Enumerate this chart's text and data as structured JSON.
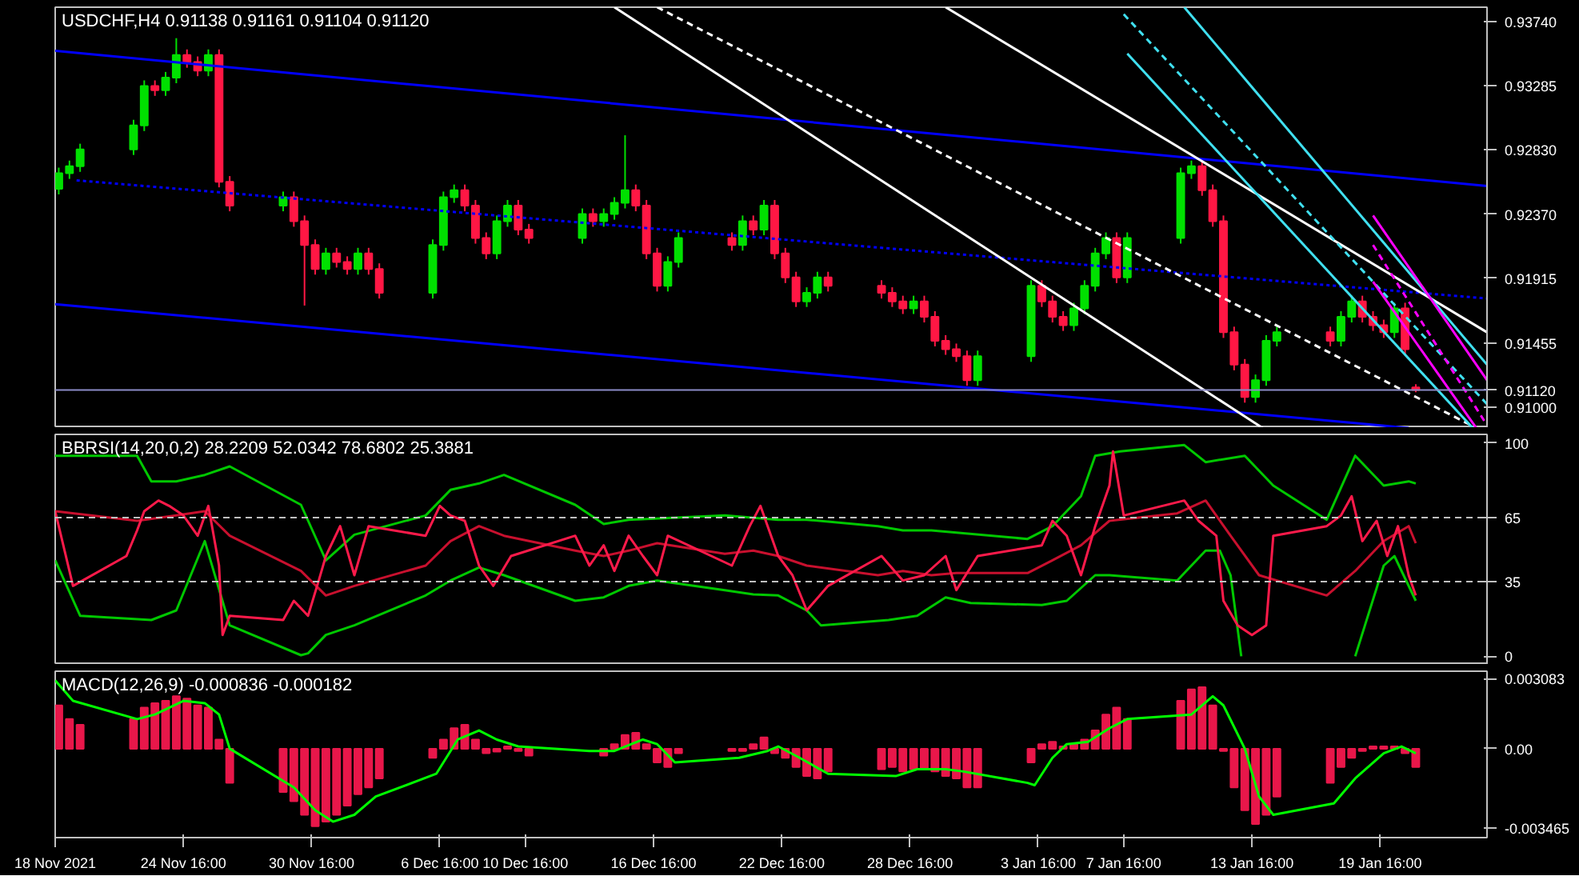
{
  "chart_data": [
    {
      "type": "candlestick",
      "title": "USDCHF,H4  0.91138 0.91161 0.91104 0.91120",
      "tick_labels": "y",
      "grid": false,
      "xlim": [
        "2021-11-18T16:00",
        "2022-01-24T16:00"
      ],
      "ylim": [
        0.9085,
        0.9384
      ],
      "yticks": [
        {
          "value": 0.91,
          "label": "0.91000"
        },
        {
          "value": 0.91455,
          "label": "0.91455"
        },
        {
          "value": 0.91915,
          "label": "0.91915"
        },
        {
          "value": 0.9237,
          "label": "0.92370"
        },
        {
          "value": 0.9283,
          "label": "0.92830"
        },
        {
          "value": 0.93285,
          "label": "0.93285"
        },
        {
          "value": 0.9374,
          "label": "0.93740"
        }
      ],
      "x": [
        "2021-11-18T20:00",
        "2021-11-19T08:00",
        "2021-11-19T20:00",
        "2021-11-22T08:00",
        "2021-11-22T20:00",
        "2021-11-23T08:00",
        "2021-11-23T20:00",
        "2021-11-24T08:00",
        "2021-11-24T20:00",
        "2021-11-25T08:00",
        "2021-11-25T20:00",
        "2021-11-26T08:00",
        "2021-11-26T20:00",
        "2021-11-29T08:00",
        "2021-11-29T20:00",
        "2021-11-30T08:00",
        "2021-11-30T20:00",
        "2021-12-01T08:00",
        "2021-12-01T20:00",
        "2021-12-02T08:00",
        "2021-12-02T20:00",
        "2021-12-03T08:00",
        "2021-12-03T20:00",
        "2021-12-06T08:00",
        "2021-12-06T20:00",
        "2021-12-07T08:00",
        "2021-12-07T20:00",
        "2021-12-08T08:00",
        "2021-12-08T20:00",
        "2021-12-09T08:00",
        "2021-12-09T20:00",
        "2021-12-10T08:00",
        "2021-12-10T20:00",
        "2021-12-13T08:00",
        "2021-12-13T20:00",
        "2021-12-14T08:00",
        "2021-12-14T20:00",
        "2021-12-15T08:00",
        "2021-12-15T20:00",
        "2021-12-16T08:00",
        "2021-12-16T20:00",
        "2021-12-17T08:00",
        "2021-12-17T20:00",
        "2021-12-20T08:00",
        "2021-12-20T20:00",
        "2021-12-21T08:00",
        "2021-12-21T20:00",
        "2021-12-22T08:00",
        "2021-12-22T20:00",
        "2021-12-23T08:00",
        "2021-12-23T20:00",
        "2021-12-24T08:00",
        "2021-12-24T20:00",
        "2021-12-27T08:00",
        "2021-12-27T20:00",
        "2021-12-28T08:00",
        "2021-12-28T20:00",
        "2021-12-29T08:00",
        "2021-12-29T20:00",
        "2021-12-30T08:00",
        "2021-12-30T20:00",
        "2021-12-31T08:00",
        "2021-12-31T20:00",
        "2022-01-03T08:00",
        "2022-01-03T20:00",
        "2022-01-04T08:00",
        "2022-01-04T20:00",
        "2022-01-05T08:00",
        "2022-01-05T20:00",
        "2022-01-06T08:00",
        "2022-01-06T20:00",
        "2022-01-07T08:00",
        "2022-01-07T20:00",
        "2022-01-10T08:00",
        "2022-01-10T20:00",
        "2022-01-11T08:00",
        "2022-01-11T20:00",
        "2022-01-12T08:00",
        "2022-01-12T20:00",
        "2022-01-13T08:00",
        "2022-01-13T20:00",
        "2022-01-14T08:00",
        "2022-01-14T20:00",
        "2022-01-17T08:00",
        "2022-01-17T20:00",
        "2022-01-18T08:00",
        "2022-01-18T20:00",
        "2022-01-19T08:00",
        "2022-01-19T20:00",
        "2022-01-20T08:00",
        "2022-01-20T20:00",
        "2022-01-21T08:00"
      ],
      "ohlc": [
        [
          0.9255,
          0.927,
          0.9251,
          0.9266
        ],
        [
          0.9266,
          0.9275,
          0.9262,
          0.9271
        ],
        [
          0.9271,
          0.9287,
          0.9267,
          0.9283
        ],
        [
          0.9283,
          0.9304,
          0.9279,
          0.93
        ],
        [
          0.93,
          0.9332,
          0.9296,
          0.9328
        ],
        [
          0.9328,
          0.9332,
          0.9321,
          0.9325
        ],
        [
          0.9325,
          0.9338,
          0.9321,
          0.9334
        ],
        [
          0.9334,
          0.9362,
          0.933,
          0.935
        ],
        [
          0.935,
          0.9354,
          0.9341,
          0.9345
        ],
        [
          0.9345,
          0.9349,
          0.9335,
          0.9339
        ],
        [
          0.9339,
          0.9354,
          0.9335,
          0.935
        ],
        [
          0.935,
          0.9354,
          0.9256,
          0.926
        ],
        [
          0.926,
          0.9264,
          0.9239,
          0.9243
        ],
        [
          0.9243,
          0.9253,
          0.9239,
          0.9249
        ],
        [
          0.9249,
          0.9253,
          0.9228,
          0.9232
        ],
        [
          0.9232,
          0.9236,
          0.9172,
          0.9215
        ],
        [
          0.9215,
          0.9219,
          0.9194,
          0.9198
        ],
        [
          0.9198,
          0.9213,
          0.9194,
          0.9209
        ],
        [
          0.9209,
          0.9213,
          0.9199,
          0.9203
        ],
        [
          0.9203,
          0.9207,
          0.9194,
          0.9198
        ],
        [
          0.9198,
          0.9213,
          0.9194,
          0.9209
        ],
        [
          0.9209,
          0.9213,
          0.9194,
          0.9198
        ],
        [
          0.9198,
          0.9202,
          0.9177,
          0.9181
        ],
        [
          0.9181,
          0.9219,
          0.9177,
          0.9215
        ],
        [
          0.9215,
          0.9253,
          0.9211,
          0.9249
        ],
        [
          0.9249,
          0.9258,
          0.9245,
          0.9254
        ],
        [
          0.9254,
          0.9258,
          0.9239,
          0.9243
        ],
        [
          0.9243,
          0.9247,
          0.9216,
          0.922
        ],
        [
          0.922,
          0.9224,
          0.9205,
          0.9209
        ],
        [
          0.9209,
          0.9236,
          0.9205,
          0.9232
        ],
        [
          0.9232,
          0.9247,
          0.9228,
          0.9243
        ],
        [
          0.9243,
          0.9247,
          0.9222,
          0.9226
        ],
        [
          0.9226,
          0.923,
          0.9216,
          0.922
        ],
        [
          0.922,
          0.9241,
          0.9216,
          0.9237
        ],
        [
          0.9237,
          0.9241,
          0.9228,
          0.9232
        ],
        [
          0.9232,
          0.9241,
          0.9228,
          0.9237
        ],
        [
          0.9237,
          0.9249,
          0.9233,
          0.9245
        ],
        [
          0.9245,
          0.9293,
          0.9241,
          0.9254
        ],
        [
          0.9254,
          0.9258,
          0.9239,
          0.9243
        ],
        [
          0.9243,
          0.9247,
          0.9205,
          0.9209
        ],
        [
          0.9209,
          0.9213,
          0.9182,
          0.9186
        ],
        [
          0.9186,
          0.9207,
          0.9182,
          0.9203
        ],
        [
          0.9203,
          0.9224,
          0.9199,
          0.922
        ],
        [
          0.922,
          0.9224,
          0.9211,
          0.9215
        ],
        [
          0.9215,
          0.9236,
          0.9211,
          0.9232
        ],
        [
          0.9232,
          0.9236,
          0.9222,
          0.9226
        ],
        [
          0.9226,
          0.9247,
          0.9222,
          0.9243
        ],
        [
          0.9243,
          0.9247,
          0.9205,
          0.9209
        ],
        [
          0.9209,
          0.9213,
          0.9188,
          0.9192
        ],
        [
          0.9192,
          0.9196,
          0.9171,
          0.9175
        ],
        [
          0.9175,
          0.9185,
          0.9171,
          0.9181
        ],
        [
          0.9181,
          0.9196,
          0.9177,
          0.9192
        ],
        [
          0.9192,
          0.9196,
          0.9182,
          0.9186
        ],
        [
          0.9186,
          0.919,
          0.9177,
          0.9181
        ],
        [
          0.9181,
          0.9185,
          0.9171,
          0.9175
        ],
        [
          0.9175,
          0.9179,
          0.9166,
          0.917
        ],
        [
          0.917,
          0.9179,
          0.9166,
          0.9175
        ],
        [
          0.9175,
          0.9179,
          0.916,
          0.9164
        ],
        [
          0.9164,
          0.9168,
          0.9143,
          0.9147
        ],
        [
          0.9147,
          0.9151,
          0.9137,
          0.9141
        ],
        [
          0.9141,
          0.9145,
          0.9132,
          0.9136
        ],
        [
          0.9136,
          0.914,
          0.9115,
          0.9119
        ],
        [
          0.9119,
          0.914,
          0.9115,
          0.9136
        ],
        [
          0.9136,
          0.919,
          0.9132,
          0.9186
        ],
        [
          0.9186,
          0.919,
          0.9171,
          0.9175
        ],
        [
          0.9175,
          0.9179,
          0.916,
          0.9164
        ],
        [
          0.9164,
          0.9168,
          0.9154,
          0.9158
        ],
        [
          0.9158,
          0.9174,
          0.9154,
          0.917
        ],
        [
          0.917,
          0.919,
          0.9166,
          0.9186
        ],
        [
          0.9186,
          0.9213,
          0.9182,
          0.9209
        ],
        [
          0.9209,
          0.9224,
          0.9205,
          0.922
        ],
        [
          0.922,
          0.9224,
          0.9188,
          0.9192
        ],
        [
          0.9192,
          0.9224,
          0.9188,
          0.922
        ],
        [
          0.922,
          0.927,
          0.9216,
          0.9266
        ],
        [
          0.9266,
          0.9275,
          0.9262,
          0.9271
        ],
        [
          0.9271,
          0.9275,
          0.925,
          0.9254
        ],
        [
          0.9254,
          0.9258,
          0.9228,
          0.9232
        ],
        [
          0.9232,
          0.9236,
          0.9149,
          0.9153
        ],
        [
          0.9153,
          0.9157,
          0.9126,
          0.913
        ],
        [
          0.913,
          0.9134,
          0.9103,
          0.9107
        ],
        [
          0.9107,
          0.9123,
          0.9103,
          0.9119
        ],
        [
          0.9119,
          0.9151,
          0.9115,
          0.9147
        ],
        [
          0.9147,
          0.9157,
          0.9143,
          0.9153
        ],
        [
          0.9153,
          0.9157,
          0.9143,
          0.9147
        ],
        [
          0.9147,
          0.9168,
          0.9143,
          0.9164
        ],
        [
          0.9164,
          0.9179,
          0.916,
          0.9175
        ],
        [
          0.9175,
          0.9179,
          0.916,
          0.9164
        ],
        [
          0.9164,
          0.9168,
          0.9154,
          0.9158
        ],
        [
          0.9158,
          0.9162,
          0.9149,
          0.9153
        ],
        [
          0.9153,
          0.9174,
          0.9149,
          0.917
        ],
        [
          0.917,
          0.9174,
          0.9137,
          0.9141
        ],
        [
          0.91138,
          0.91161,
          0.91104,
          0.9112
        ]
      ],
      "series": [
        {
          "type": "line",
          "color": "#0000ff",
          "line_style": "solid",
          "x": [
            "2021-11-18T16:00",
            "2022-01-24T16:00"
          ],
          "values": [
            0.9353,
            0.9257
          ]
        },
        {
          "type": "line",
          "color": "#0000ff",
          "line_style": "dotted",
          "x": [
            "2021-11-19T16:00",
            "2022-01-24T16:00"
          ],
          "values": [
            0.9261,
            0.9177
          ]
        },
        {
          "type": "line",
          "color": "#0000ff",
          "line_style": "solid",
          "x": [
            "2021-11-18T16:00",
            "2022-01-21T00:00"
          ],
          "values": [
            0.9173,
            0.9085
          ]
        },
        {
          "type": "line",
          "color": "#ffffff",
          "line_style": "solid",
          "x": [
            "2021-12-14T20:00",
            "2022-01-14T04:00"
          ],
          "values": [
            0.9384,
            0.9085
          ]
        },
        {
          "type": "line",
          "color": "#ffffff",
          "line_style": "dashed",
          "x": [
            "2021-12-16T20:00",
            "2022-01-24T04:00"
          ],
          "values": [
            0.9384,
            0.9085
          ]
        },
        {
          "type": "line",
          "color": "#ffffff",
          "line_style": "solid",
          "x": [
            "2021-12-30T08:00",
            "2022-01-24T16:00"
          ],
          "values": [
            0.9384,
            0.9153
          ]
        },
        {
          "type": "line",
          "color": "#40e0f0",
          "line_style": "solid",
          "x": [
            "2022-01-10T12:00",
            "2022-01-24T16:00"
          ],
          "values": [
            0.9384,
            0.913
          ]
        },
        {
          "type": "line",
          "color": "#40e0f0",
          "line_style": "dashed",
          "x": [
            "2022-01-07T16:00",
            "2022-01-24T16:00"
          ],
          "values": [
            0.9379,
            0.9102
          ]
        },
        {
          "type": "line",
          "color": "#40e0f0",
          "line_style": "solid",
          "x": [
            "2022-01-07T20:00",
            "2022-01-24T00:00"
          ],
          "values": [
            0.9351,
            0.9085
          ]
        },
        {
          "type": "line",
          "color": "#ff00ff",
          "line_style": "solid",
          "x": [
            "2022-01-19T08:00",
            "2022-01-24T16:00"
          ],
          "values": [
            0.9236,
            0.9119
          ]
        },
        {
          "type": "line",
          "color": "#ff00ff",
          "line_style": "dashed",
          "x": [
            "2022-01-19T08:00",
            "2022-01-24T16:00"
          ],
          "values": [
            0.9215,
            0.9087
          ]
        },
        {
          "type": "line",
          "color": "#ff00ff",
          "line_style": "solid",
          "x": [
            "2022-01-19T08:00",
            "2022-01-24T04:00"
          ],
          "values": [
            0.9189,
            0.9085
          ]
        }
      ],
      "ref_lines": [
        {
          "axis": "y",
          "value": 0.9112,
          "label": "0.91120",
          "color": "#8c8cc8",
          "line_style": "solid"
        }
      ]
    },
    {
      "type": "line",
      "title": "BBRSI(14,20,0,2) 28.2209 52.0342 78.6802 25.3881",
      "tick_labels": "y",
      "grid": false,
      "xlim": [
        "2021-11-18T16:00",
        "2022-01-24T16:00"
      ],
      "ylim": [
        -4,
        104
      ],
      "yticks": [
        0,
        35,
        65,
        100
      ],
      "series": [
        {
          "color": "#00c800",
          "x": [
            "2021-11-18T16:00",
            "2021-11-22T12:00",
            "2021-11-23T04:00",
            "2021-11-24T08:00",
            "2021-11-25T16:00",
            "2021-11-26T20:00",
            "2021-11-30T04:00",
            "2021-12-01T08:00",
            "2021-12-02T16:00",
            "2021-12-06T00:00",
            "2021-12-07T04:00",
            "2021-12-08T12:00",
            "2021-12-09T16:00",
            "2021-12-13T00:00",
            "2021-12-14T08:00",
            "2021-12-15T12:00",
            "2021-12-20T00:00",
            "2021-12-22T12:00",
            "2021-12-23T20:00",
            "2021-12-27T04:00",
            "2021-12-28T08:00",
            "2021-12-29T16:00",
            "2022-01-03T04:00",
            "2022-01-04T08:00",
            "2022-01-05T16:00",
            "2022-01-06T08:00",
            "2022-01-07T12:00",
            "2022-01-10T12:00",
            "2022-01-11T12:00",
            "2022-01-13T08:00",
            "2022-01-14T16:00",
            "2022-01-17T04:00",
            "2022-01-18T12:00",
            "2022-01-19T20:00",
            "2022-01-21T00:00",
            "2022-01-21T08:00"
          ],
          "values": [
            94,
            94,
            82,
            82,
            85,
            89,
            71,
            45,
            57,
            66,
            78,
            81,
            85,
            71,
            62,
            64,
            66,
            64,
            64,
            61,
            59,
            59,
            55,
            61,
            75,
            94,
            96,
            99,
            91,
            94,
            80,
            64,
            94,
            80,
            82,
            81
          ]
        },
        {
          "color": "#00c800",
          "x": [
            "2021-11-18T16:00",
            "2021-11-19T20:00",
            "2021-11-23T04:00",
            "2021-11-24T08:00",
            "2021-11-25T16:00",
            "2021-11-26T20:00",
            "2021-11-30T04:00",
            "2021-11-30T12:00",
            "2021-12-01T08:00",
            "2021-12-02T16:00",
            "2021-12-06T00:00",
            "2021-12-07T04:00",
            "2021-12-08T12:00",
            "2021-12-09T16:00",
            "2021-12-13T00:00",
            "2021-12-14T08:00",
            "2021-12-15T12:00",
            "2021-12-16T20:00",
            "2021-12-20T00:00",
            "2021-12-21T08:00",
            "2021-12-22T12:00",
            "2021-12-23T20:00",
            "2021-12-24T12:00",
            "2021-12-27T16:00",
            "2021-12-29T00:00",
            "2021-12-30T08:00",
            "2021-12-31T12:00",
            "2022-01-03T20:00",
            "2022-01-05T00:00",
            "2022-01-06T08:00",
            "2022-01-07T00:00",
            "2022-01-10T04:00",
            "2022-01-11T12:00",
            "2022-01-12T04:00",
            "2022-01-12T16:00",
            "2022-01-13T04:00",
            "2022-01-14T00:00",
            "2022-01-17T20:00",
            "2022-01-18T12:00",
            "2022-01-19T20:00",
            "2022-01-20T08:00",
            "2022-01-21T08:00"
          ],
          "values": [
            45,
            19,
            17,
            21.5,
            54,
            14.5,
            0.5,
            1.4,
            10,
            14.5,
            28.5,
            35.5,
            41.6,
            38,
            26,
            27.6,
            33,
            35.5,
            31,
            29,
            28.5,
            21.5,
            14.5,
            17,
            19,
            27.6,
            25,
            24,
            26,
            38,
            38,
            35.5,
            49.5,
            49.5,
            38,
            0,
            null,
            null,
            0,
            42.5,
            47,
            26
          ]
        },
        {
          "color": "#c8102e",
          "x": [
            "2021-11-18T16:00",
            "2021-11-22T12:00",
            "2021-11-24T08:00",
            "2021-11-25T16:00",
            "2021-11-26T20:00",
            "2021-11-30T04:00",
            "2021-12-01T08:00",
            "2021-12-02T16:00",
            "2021-12-06T00:00",
            "2021-12-07T04:00",
            "2021-12-08T12:00",
            "2021-12-09T16:00",
            "2021-12-13T00:00",
            "2021-12-14T08:00",
            "2021-12-15T12:00",
            "2021-12-16T20:00",
            "2021-12-20T00:00",
            "2021-12-21T08:00",
            "2021-12-22T12:00",
            "2021-12-23T20:00",
            "2021-12-27T04:00",
            "2021-12-28T08:00",
            "2021-12-29T16:00",
            "2021-12-30T20:00",
            "2022-01-03T04:00",
            "2022-01-04T08:00",
            "2022-01-05T16:00",
            "2022-01-07T00:00",
            "2022-01-10T04:00",
            "2022-01-11T12:00",
            "2022-01-12T16:00",
            "2022-01-14T00:00",
            "2022-01-17T04:00",
            "2022-01-18T12:00",
            "2022-01-19T20:00",
            "2022-01-21T00:00",
            "2022-01-21T08:00"
          ],
          "values": [
            68,
            63.5,
            66,
            68,
            56.5,
            40,
            28.5,
            33,
            42.5,
            54,
            61,
            56.5,
            49.5,
            47,
            49.5,
            53,
            48,
            49.5,
            47,
            42.5,
            38,
            40,
            38,
            39,
            39,
            45,
            52,
            63.5,
            67,
            73,
            56.5,
            38,
            28.5,
            40,
            54,
            61,
            53
          ]
        },
        {
          "color": "#ff1a4a",
          "x": [
            "2021-11-18T16:00",
            "2021-11-19T12:00",
            "2021-11-22T00:00",
            "2021-11-22T12:00",
            "2021-11-22T20:00",
            "2021-11-23T12:00",
            "2021-11-24T00:00",
            "2021-11-24T16:00",
            "2021-11-25T08:00",
            "2021-11-25T20:00",
            "2021-11-26T08:00",
            "2021-11-26T12:00",
            "2021-11-26T20:00",
            "2021-11-29T08:00",
            "2021-11-29T20:00",
            "2021-11-30T12:00",
            "2021-12-01T00:00",
            "2021-12-01T08:00",
            "2021-12-02T00:00",
            "2021-12-02T16:00",
            "2021-12-03T08:00",
            "2021-12-06T00:00",
            "2021-12-06T16:00",
            "2021-12-07T04:00",
            "2021-12-07T20:00",
            "2021-12-08T12:00",
            "2021-12-09T04:00",
            "2021-12-10T00:00",
            "2021-12-13T00:00",
            "2021-12-13T16:00",
            "2021-12-14T08:00",
            "2021-12-14T20:00",
            "2021-12-15T12:00",
            "2021-12-16T04:00",
            "2021-12-16T20:00",
            "2021-12-17T08:00",
            "2021-12-20T08:00",
            "2021-12-21T04:00",
            "2021-12-21T16:00",
            "2021-12-22T12:00",
            "2021-12-23T04:00",
            "2021-12-23T20:00",
            "2021-12-24T20:00",
            "2021-12-27T08:00",
            "2021-12-28T08:00",
            "2021-12-29T08:00",
            "2021-12-30T08:00",
            "2021-12-30T20:00",
            "2021-12-31T20:00",
            "2022-01-03T20:00",
            "2022-01-04T08:00",
            "2022-01-05T00:00",
            "2022-01-05T16:00",
            "2022-01-06T08:00",
            "2022-01-07T00:00",
            "2022-01-07T04:00",
            "2022-01-07T16:00",
            "2022-01-10T12:00",
            "2022-01-11T04:00",
            "2022-01-12T00:00",
            "2022-01-12T08:00",
            "2022-01-13T00:00",
            "2022-01-13T16:00",
            "2022-01-14T08:00",
            "2022-01-14T16:00",
            "2022-01-17T04:00",
            "2022-01-17T20:00",
            "2022-01-18T08:00",
            "2022-01-18T20:00",
            "2022-01-19T12:00",
            "2022-01-20T00:00",
            "2022-01-20T12:00",
            "2022-01-21T00:00",
            "2022-01-21T08:00"
          ],
          "values": [
            68,
            33,
            47,
            59,
            68,
            73,
            70.5,
            66,
            56.5,
            70.5,
            42.5,
            10,
            19,
            17,
            26,
            19,
            35.5,
            47,
            61,
            38,
            61,
            56.5,
            70.5,
            66,
            63.5,
            42.5,
            33,
            47,
            56.5,
            42.5,
            52,
            40,
            56.5,
            47,
            38,
            56.5,
            42.5,
            61,
            70.5,
            47,
            38,
            21.5,
            33,
            47,
            35.5,
            38,
            47,
            31,
            47,
            52,
            63.5,
            56.5,
            38,
            61,
            80,
            96,
            66,
            73,
            63.5,
            56.5,
            26,
            14.5,
            10,
            14.5,
            56.5,
            61,
            66,
            75,
            54,
            63.5,
            47,
            61,
            38,
            28.5
          ]
        }
      ],
      "ref_lines": [
        {
          "axis": "y",
          "value": 65,
          "color": "#c0c0c0",
          "line_style": "dashed"
        },
        {
          "axis": "y",
          "value": 35,
          "color": "#c0c0c0",
          "line_style": "dashed"
        }
      ]
    },
    {
      "type": "bar",
      "title": "MACD(12,26,9) -0.000836 -0.000182",
      "grid": false,
      "xlim": [
        "2021-11-18T16:00",
        "2022-01-24T16:00"
      ],
      "xticks": [
        {
          "value": "2021-11-18T16:00",
          "label": "18 Nov 2021"
        },
        {
          "value": "2021-11-24T16:00",
          "label": "24 Nov 16:00"
        },
        {
          "value": "2021-11-30T16:00",
          "label": "30 Nov 16:00"
        },
        {
          "value": "2021-12-06T16:00",
          "label": "6 Dec 16:00"
        },
        {
          "value": "2021-12-10T16:00",
          "label": "10 Dec 16:00"
        },
        {
          "value": "2021-12-16T16:00",
          "label": "16 Dec 16:00"
        },
        {
          "value": "2021-12-22T16:00",
          "label": "22 Dec 16:00"
        },
        {
          "value": "2021-12-28T16:00",
          "label": "28 Dec 16:00"
        },
        {
          "value": "2022-01-03T16:00",
          "label": "3 Jan 16:00"
        },
        {
          "value": "2022-01-07T16:00",
          "label": "7 Jan 16:00"
        },
        {
          "value": "2022-01-13T16:00",
          "label": "13 Jan 16:00"
        },
        {
          "value": "2022-01-19T16:00",
          "label": "19 Jan 16:00"
        }
      ],
      "ylim": [
        -0.0039,
        0.0034
      ],
      "yticks": [
        {
          "value": -0.003465,
          "label": "-0.003465"
        },
        {
          "value": 0,
          "label": "0.00"
        },
        {
          "value": 0.003083,
          "label": "0.003083"
        }
      ],
      "series": [
        {
          "type": "bar",
          "color": "#e8174a",
          "x": [
            "2021-11-18T20:00",
            "2021-11-19T08:00",
            "2021-11-19T20:00",
            "2021-11-22T08:00",
            "2021-11-22T20:00",
            "2021-11-23T08:00",
            "2021-11-23T20:00",
            "2021-11-24T08:00",
            "2021-11-24T20:00",
            "2021-11-25T08:00",
            "2021-11-25T20:00",
            "2021-11-26T08:00",
            "2021-11-26T20:00",
            "2021-11-29T08:00",
            "2021-11-29T20:00",
            "2021-11-30T08:00",
            "2021-11-30T20:00",
            "2021-12-01T08:00",
            "2021-12-01T20:00",
            "2021-12-02T08:00",
            "2021-12-02T20:00",
            "2021-12-03T08:00",
            "2021-12-03T20:00",
            "2021-12-06T08:00",
            "2021-12-06T20:00",
            "2021-12-07T08:00",
            "2021-12-07T20:00",
            "2021-12-08T08:00",
            "2021-12-08T20:00",
            "2021-12-09T08:00",
            "2021-12-09T20:00",
            "2021-12-10T08:00",
            "2021-12-10T20:00",
            "2021-12-13T08:00",
            "2021-12-13T20:00",
            "2021-12-14T08:00",
            "2021-12-14T20:00",
            "2021-12-15T08:00",
            "2021-12-15T20:00",
            "2021-12-16T08:00",
            "2021-12-16T20:00",
            "2021-12-17T08:00",
            "2021-12-17T20:00",
            "2021-12-20T08:00",
            "2021-12-20T20:00",
            "2021-12-21T08:00",
            "2021-12-21T20:00",
            "2021-12-22T08:00",
            "2021-12-22T20:00",
            "2021-12-23T08:00",
            "2021-12-23T20:00",
            "2021-12-24T08:00",
            "2021-12-24T20:00",
            "2021-12-27T08:00",
            "2021-12-27T20:00",
            "2021-12-28T08:00",
            "2021-12-28T20:00",
            "2021-12-29T08:00",
            "2021-12-29T20:00",
            "2021-12-30T08:00",
            "2021-12-30T20:00",
            "2021-12-31T08:00",
            "2021-12-31T20:00",
            "2022-01-03T08:00",
            "2022-01-03T20:00",
            "2022-01-04T08:00",
            "2022-01-04T20:00",
            "2022-01-05T08:00",
            "2022-01-05T20:00",
            "2022-01-06T08:00",
            "2022-01-06T20:00",
            "2022-01-07T08:00",
            "2022-01-07T20:00",
            "2022-01-10T08:00",
            "2022-01-10T20:00",
            "2022-01-11T08:00",
            "2022-01-11T20:00",
            "2022-01-12T08:00",
            "2022-01-12T20:00",
            "2022-01-13T08:00",
            "2022-01-13T20:00",
            "2022-01-14T08:00",
            "2022-01-14T20:00",
            "2022-01-17T08:00",
            "2022-01-17T20:00",
            "2022-01-18T08:00",
            "2022-01-18T20:00",
            "2022-01-19T08:00",
            "2022-01-19T20:00",
            "2022-01-20T08:00",
            "2022-01-20T20:00",
            "2022-01-21T08:00"
          ],
          "values": [
            0.0019,
            0.0013,
            0.00105,
            0.0013,
            0.0018,
            0.002,
            0.0021,
            0.0023,
            0.0022,
            0.0019,
            0.0018,
            0.0004,
            -0.0015,
            -0.0019,
            -0.0023,
            -0.0029,
            -0.0034,
            -0.0032,
            -0.0029,
            -0.0025,
            -0.002,
            -0.0017,
            -0.0013,
            -0.0004,
            0.0004,
            0.0009,
            0.00105,
            0.0004,
            -0.0002,
            -0.00013,
            0.0001,
            -0.0001,
            -0.0003,
            null,
            null,
            -0.0003,
            0.0002,
            0.0006,
            0.0007,
            0.0002,
            -0.0006,
            -0.0008,
            -0.0002,
            -0.0001,
            -0.0001,
            0.0002,
            0.0005,
            -0.0002,
            -0.0004,
            -0.0008,
            -0.0012,
            -0.0013,
            -0.001,
            -0.0009,
            -0.0008,
            -0.001,
            -0.0009,
            -0.0009,
            -0.001,
            -0.0012,
            -0.0013,
            -0.0017,
            -0.0017,
            -0.0006,
            0.0002,
            0.0003,
            0.0001,
            0.0002,
            0.0004,
            0.0008,
            0.0015,
            0.0018,
            0.0013,
            0.0021,
            0.0026,
            0.0027,
            0.0019,
            -0.0001,
            -0.0017,
            -0.0027,
            -0.0033,
            -0.0029,
            -0.0021,
            -0.0015,
            -0.0008,
            -0.0004,
            -0.0001,
            0.0001,
            0.0001,
            0.0001,
            -0.0002,
            -0.0008
          ]
        },
        {
          "type": "line",
          "color": "#00ff00",
          "x": [
            "2021-11-18T16:00",
            "2021-11-19T12:00",
            "2021-11-22T12:00",
            "2021-11-23T08:00",
            "2021-11-24T16:00",
            "2021-11-25T16:00",
            "2021-11-26T08:00",
            "2021-11-26T20:00",
            "2021-11-29T20:00",
            "2021-11-30T20:00",
            "2021-12-01T16:00",
            "2021-12-02T16:00",
            "2021-12-03T16:00",
            "2021-12-06T12:00",
            "2021-12-07T12:00",
            "2021-12-08T12:00",
            "2021-12-09T08:00",
            "2021-12-10T08:00",
            "2021-12-13T16:00",
            "2021-12-14T20:00",
            "2021-12-16T04:00",
            "2021-12-16T20:00",
            "2021-12-17T16:00",
            "2021-12-20T16:00",
            "2021-12-22T00:00",
            "2021-12-22T12:00",
            "2021-12-23T12:00",
            "2021-12-24T20:00",
            "2021-12-28T00:00",
            "2021-12-29T00:00",
            "2021-12-30T08:00",
            "2021-12-31T04:00",
            "2022-01-03T04:00",
            "2022-01-03T12:00",
            "2022-01-04T08:00",
            "2022-01-05T00:00",
            "2022-01-06T00:00",
            "2022-01-07T00:00",
            "2022-01-07T20:00",
            "2022-01-10T20:00",
            "2022-01-11T20:00",
            "2022-01-12T08:00",
            "2022-01-13T08:00",
            "2022-01-14T00:00",
            "2022-01-14T16:00",
            "2022-01-17T12:00",
            "2022-01-18T12:00",
            "2022-01-19T20:00",
            "2022-01-20T16:00",
            "2022-01-21T08:00"
          ],
          "values": [
            0.003,
            0.0021,
            0.0013,
            0.0015,
            0.0021,
            0.002,
            0.0015,
            0,
            -0.0017,
            -0.0027,
            -0.0032,
            -0.0029,
            -0.0021,
            -0.0011,
            0.0004,
            0.0008,
            0.0004,
            0.0001,
            -0.0001,
            -0.0001,
            0.0004,
            0.0002,
            -0.0006,
            -0.0004,
            -0.0001,
            0.0001,
            -0.0004,
            -0.0011,
            -0.0012,
            -0.0009,
            -0.0009,
            -0.001,
            -0.0015,
            -0.0016,
            -0.0004,
            0.0002,
            0.0003,
            0.0009,
            0.0013,
            0.0015,
            0.0023,
            0.0019,
            0,
            -0.0021,
            -0.0029,
            -0.0024,
            -0.0013,
            -0.0002,
            0.0001,
            -0.0002
          ]
        }
      ]
    }
  ]
}
